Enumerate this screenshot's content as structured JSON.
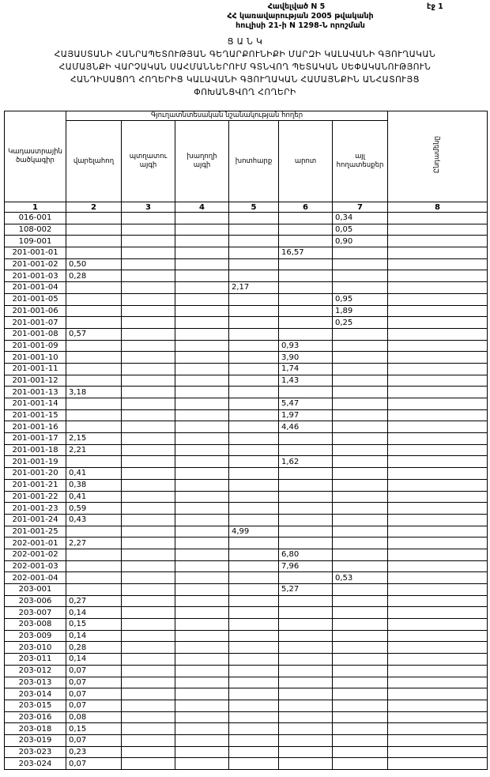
{
  "header": {
    "annex": "Հավելված N 5",
    "line2": "ՀՀ կառավարության 2005 թվականի",
    "line3": "հուլիսի 21-ի N 1298-Ն որոշման",
    "page": "էջ 1"
  },
  "title": {
    "heading": "Ց Ա Ն Կ",
    "lines": [
      "ՀԱՅԱՍՏԱՆԻ ՀԱՆՐԱՊԵՏՈՒԹՅԱՆ ԳԵՂԱՐՔՈՒՆԻՔԻ ՄԱՐԶԻ ԿԱԼԱՎԱՆԻ ԳՅՈՒՂԱԿԱՆ",
      "ՀԱՄԱՅՆՔԻ ՎԱՐՉԱԿԱՆ ՍԱՀՄԱՆՆԵՐՈՒՄ ԳՏՆՎՈՂ ՊԵՏԱԿԱՆ ՍԵՓԱԿԱՆՈՒԹՅՈՒՆ",
      "ՀԱՆԴԻՍԱՑՈՂ ՀՈՂԵՐԻՑ ԿԱԼԱՎԱՆԻ ԳՅՈՒՂԱԿԱՆ ՀԱՄԱՅՆՔԻՆ ԱՆՀԱՏՈՒՅՑ",
      "ՓՈԽԱՆՑՎՈՂ ՀՈՂԵՐԻ"
    ]
  },
  "table": {
    "code_header": "Կադաստրային ծածկագիր",
    "group_header": "Գյուղատնտեսական նշանակության հողեր",
    "columns": [
      "վարելահող",
      "պտղատու այգի",
      "խաղողի այգի",
      "խոտհարք",
      "արոտ",
      "այլ հողատեսքեր"
    ],
    "total_header": "Ընդամենը",
    "column_numbers": [
      "1",
      "2",
      "3",
      "4",
      "5",
      "6",
      "7",
      "8"
    ],
    "rows": [
      [
        "016-001",
        null,
        null,
        null,
        null,
        null,
        "0,34",
        null
      ],
      [
        "108-002",
        null,
        null,
        null,
        null,
        null,
        "0,05",
        null
      ],
      [
        "109-001",
        null,
        null,
        null,
        null,
        null,
        "0,90",
        null
      ],
      [
        "201-001-01",
        null,
        null,
        null,
        null,
        "16,57",
        null,
        null
      ],
      [
        "201-001-02",
        "0,50",
        null,
        null,
        null,
        null,
        null,
        null
      ],
      [
        "201-001-03",
        "0,28",
        null,
        null,
        null,
        null,
        null,
        null
      ],
      [
        "201-001-04",
        null,
        null,
        null,
        "2,17",
        null,
        null,
        null
      ],
      [
        "201-001-05",
        null,
        null,
        null,
        null,
        null,
        "0,95",
        null
      ],
      [
        "201-001-06",
        null,
        null,
        null,
        null,
        null,
        "1,89",
        null
      ],
      [
        "201-001-07",
        null,
        null,
        null,
        null,
        null,
        "0,25",
        null
      ],
      [
        "201-001-08",
        "0,57",
        null,
        null,
        null,
        null,
        null,
        null
      ],
      [
        "201-001-09",
        null,
        null,
        null,
        null,
        "0,93",
        null,
        null
      ],
      [
        "201-001-10",
        null,
        null,
        null,
        null,
        "3,90",
        null,
        null
      ],
      [
        "201-001-11",
        null,
        null,
        null,
        null,
        "1,74",
        null,
        null
      ],
      [
        "201-001-12",
        null,
        null,
        null,
        null,
        "1,43",
        null,
        null
      ],
      [
        "201-001-13",
        "3,18",
        null,
        null,
        null,
        null,
        null,
        null
      ],
      [
        "201-001-14",
        null,
        null,
        null,
        null,
        "5,47",
        null,
        null
      ],
      [
        "201-001-15",
        null,
        null,
        null,
        null,
        "1,97",
        null,
        null
      ],
      [
        "201-001-16",
        null,
        null,
        null,
        null,
        "4,46",
        null,
        null
      ],
      [
        "201-001-17",
        "2,15",
        null,
        null,
        null,
        null,
        null,
        null
      ],
      [
        "201-001-18",
        "2,21",
        null,
        null,
        null,
        null,
        null,
        null
      ],
      [
        "201-001-19",
        null,
        null,
        null,
        null,
        "1,62",
        null,
        null
      ],
      [
        "201-001-20",
        "0,41",
        null,
        null,
        null,
        null,
        null,
        null
      ],
      [
        "201-001-21",
        "0,38",
        null,
        null,
        null,
        null,
        null,
        null
      ],
      [
        "201-001-22",
        "0,41",
        null,
        null,
        null,
        null,
        null,
        null
      ],
      [
        "201-001-23",
        "0,59",
        null,
        null,
        null,
        null,
        null,
        null
      ],
      [
        "201-001-24",
        "0,43",
        null,
        null,
        null,
        null,
        null,
        null
      ],
      [
        "201-001-25",
        null,
        null,
        null,
        "4,99",
        null,
        null,
        null
      ],
      [
        "202-001-01",
        "2,27",
        null,
        null,
        null,
        null,
        null,
        null
      ],
      [
        "202-001-02",
        null,
        null,
        null,
        null,
        "6,80",
        null,
        null
      ],
      [
        "202-001-03",
        null,
        null,
        null,
        null,
        "7,96",
        null,
        null
      ],
      [
        "202-001-04",
        null,
        null,
        null,
        null,
        null,
        "0,53",
        null
      ],
      [
        "203-001",
        null,
        null,
        null,
        null,
        "5,27",
        null,
        null
      ],
      [
        "203-006",
        "0,27",
        null,
        null,
        null,
        null,
        null,
        null
      ],
      [
        "203-007",
        "0,14",
        null,
        null,
        null,
        null,
        null,
        null
      ],
      [
        "203-008",
        "0,15",
        null,
        null,
        null,
        null,
        null,
        null
      ],
      [
        "203-009",
        "0,14",
        null,
        null,
        null,
        null,
        null,
        null
      ],
      [
        "203-010",
        "0,28",
        null,
        null,
        null,
        null,
        null,
        null
      ],
      [
        "203-011",
        "0,14",
        null,
        null,
        null,
        null,
        null,
        null
      ],
      [
        "203-012",
        "0,07",
        null,
        null,
        null,
        null,
        null,
        null
      ],
      [
        "203-013",
        "0,07",
        null,
        null,
        null,
        null,
        null,
        null
      ],
      [
        "203-014",
        "0,07",
        null,
        null,
        null,
        null,
        null,
        null
      ],
      [
        "203-015",
        "0,07",
        null,
        null,
        null,
        null,
        null,
        null
      ],
      [
        "203-016",
        "0,08",
        null,
        null,
        null,
        null,
        null,
        null
      ],
      [
        "203-018",
        "0,15",
        null,
        null,
        null,
        null,
        null,
        null
      ],
      [
        "203-019",
        "0,07",
        null,
        null,
        null,
        null,
        null,
        null
      ],
      [
        "203-023",
        "0,23",
        null,
        null,
        null,
        null,
        null,
        null
      ],
      [
        "203-024",
        "0,07",
        null,
        null,
        null,
        null,
        null,
        null
      ]
    ]
  }
}
